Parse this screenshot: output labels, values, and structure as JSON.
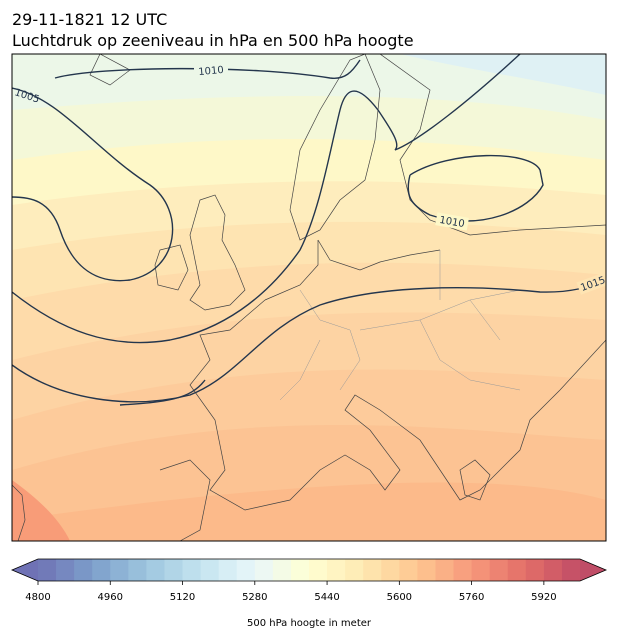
{
  "header": {
    "title": "29-11-1821 12 UTC",
    "subtitle": "Luchtdruk op zeeniveau in hPa en 500 hPa hoogte"
  },
  "map": {
    "isobar_labels": [
      1010,
      1005,
      1010,
      1015
    ]
  },
  "colorbar": {
    "lim": [
      4800,
      6000
    ],
    "step": 40,
    "ticks": [
      4800,
      4960,
      5120,
      5280,
      5440,
      5600,
      5760,
      5920
    ],
    "label": "500 hPa hoogte in meter",
    "colormap": [
      "#313695",
      "#4575b4",
      "#74add1",
      "#abd9e9",
      "#e0f3f8",
      "#ffffbf",
      "#fee090",
      "#fdae61",
      "#f46d43",
      "#d73027",
      "#a50026"
    ],
    "extend": "both"
  }
}
